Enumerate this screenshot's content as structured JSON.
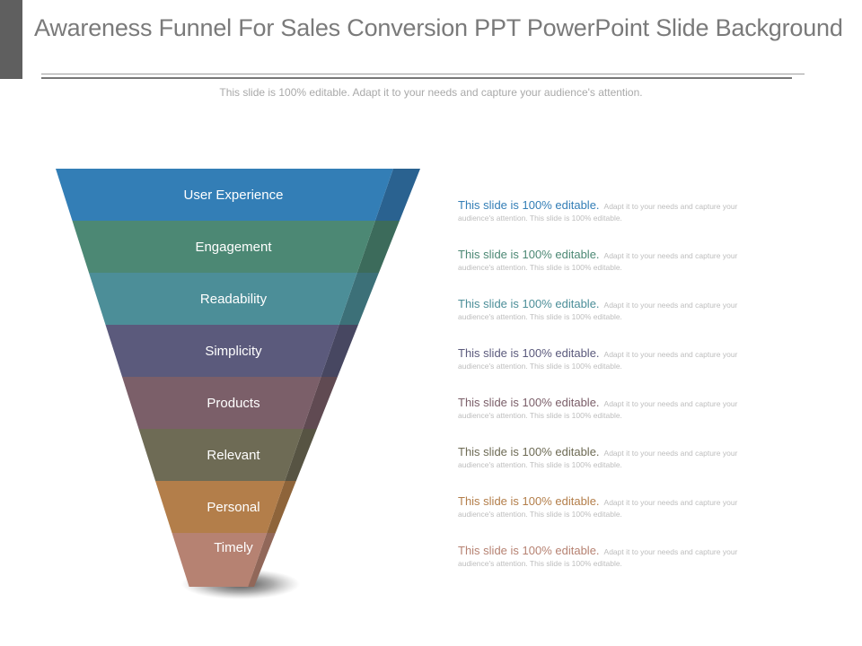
{
  "header": {
    "title": "Awareness Funnel For Sales Conversion PPT PowerPoint Slide Background",
    "subtitle": "This slide is 100% editable. Adapt it to your needs and capture your audience's attention."
  },
  "funnel": {
    "segments": [
      {
        "label": "User Experience",
        "color": "#337eb6",
        "side": "#2a6290"
      },
      {
        "label": "Engagement",
        "color": "#4c8874",
        "side": "#3c6b5b"
      },
      {
        "label": "Readability",
        "color": "#4c8e98",
        "side": "#3c7078"
      },
      {
        "label": "Simplicity",
        "color": "#5b5a7c",
        "side": "#474761"
      },
      {
        "label": "Products",
        "color": "#7b5f69",
        "side": "#604a52"
      },
      {
        "label": "Relevant",
        "color": "#6e6b55",
        "side": "#575443"
      },
      {
        "label": "Personal",
        "color": "#b37e4a",
        "side": "#8e643a"
      },
      {
        "label": "Timely",
        "color": "#b68272",
        "side": "#916759"
      }
    ]
  },
  "descriptions": [
    {
      "head": "This slide is 100% editable.",
      "body_line1": "Adapt it to your needs and capture your",
      "body_line2": "audience's attention. This slide is 100% editable.",
      "color": "#337eb6"
    },
    {
      "head": "This slide is 100% editable.",
      "body_line1": "Adapt it to your needs and capture your",
      "body_line2": "audience's attention. This slide is 100% editable.",
      "color": "#4c8874"
    },
    {
      "head": "This slide is 100% editable.",
      "body_line1": "Adapt it to your needs and capture your",
      "body_line2": "audience's attention. This slide is 100% editable.",
      "color": "#4c8e98"
    },
    {
      "head": "This slide is 100% editable.",
      "body_line1": "Adapt it to your needs and capture your",
      "body_line2": "audience's attention. This slide is 100% editable.",
      "color": "#5b5a7c"
    },
    {
      "head": "This slide is 100% editable.",
      "body_line1": "Adapt it to your needs and capture your",
      "body_line2": "audience's attention. This slide is 100% editable.",
      "color": "#7b5f69"
    },
    {
      "head": "This slide is 100% editable.",
      "body_line1": "Adapt it to your needs and capture your",
      "body_line2": "audience's attention. This slide is 100% editable.",
      "color": "#6e6b55"
    },
    {
      "head": "This slide is 100% editable.",
      "body_line1": "Adapt it to your needs and capture your",
      "body_line2": "audience's attention. This slide is 100% editable.",
      "color": "#b37e4a"
    },
    {
      "head": "This slide is 100% editable.",
      "body_line1": "Adapt it to your needs and capture your",
      "body_line2": "audience's attention. This slide is 100% editable.",
      "color": "#b68272"
    }
  ]
}
